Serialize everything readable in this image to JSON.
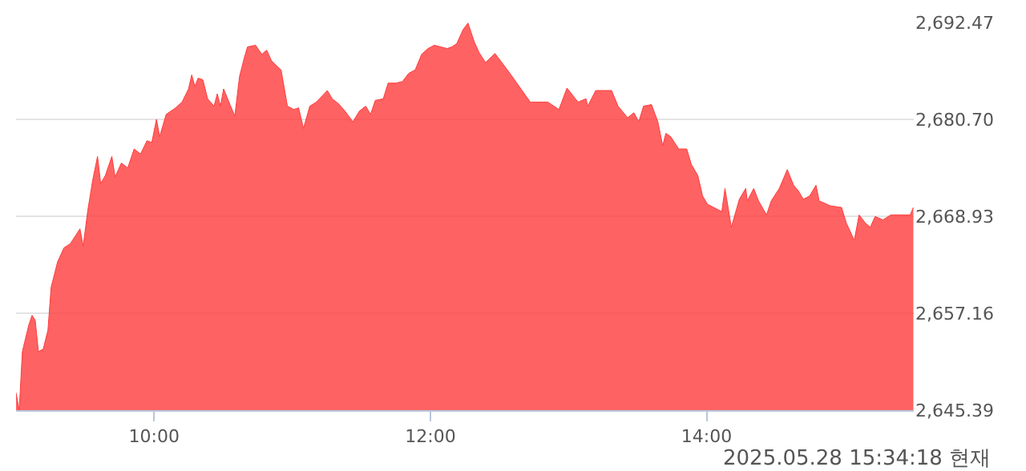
{
  "chart_data": {
    "type": "area",
    "color": "#ff3b3b",
    "marker": "none",
    "grid": "y",
    "legend": false,
    "x": [
      9.0,
      9.023,
      9.046,
      9.092,
      9.116,
      9.139,
      9.162,
      9.197,
      9.231,
      9.254,
      9.301,
      9.347,
      9.393,
      9.463,
      9.486,
      9.52,
      9.555,
      9.59,
      9.613,
      9.647,
      9.694,
      9.717,
      9.763,
      9.809,
      9.855,
      9.902,
      9.948,
      9.983,
      10.017,
      10.04,
      10.087,
      10.156,
      10.202,
      10.249,
      10.272,
      10.295,
      10.318,
      10.353,
      10.387,
      10.434,
      10.457,
      10.48,
      10.503,
      10.549,
      10.584,
      10.618,
      10.653,
      10.676,
      10.734,
      10.78,
      10.815,
      10.85,
      10.919,
      10.965,
      11.012,
      11.046,
      11.081,
      11.127,
      11.174,
      11.208,
      11.254,
      11.289,
      11.335,
      11.382,
      11.439,
      11.486,
      11.532,
      11.567,
      11.601,
      11.659,
      11.694,
      11.752,
      11.798,
      11.844,
      11.89,
      11.937,
      11.983,
      12.029,
      12.075,
      12.121,
      12.156,
      12.191,
      12.237,
      12.272,
      12.318,
      12.353,
      12.399,
      12.468,
      12.584,
      12.723,
      12.85,
      12.931,
      12.989,
      13.069,
      13.127,
      13.139,
      13.197,
      13.312,
      13.359,
      13.428,
      13.474,
      13.509,
      13.543,
      13.601,
      13.647,
      13.682,
      13.705,
      13.74,
      13.798,
      13.856,
      13.89,
      13.936,
      13.971,
      14.006,
      14.052,
      14.11,
      14.133,
      14.179,
      14.237,
      14.283,
      14.295,
      14.341,
      14.376,
      14.434,
      14.468,
      14.526,
      14.584,
      14.63,
      14.665,
      14.7,
      14.746,
      14.792,
      14.815,
      14.896,
      14.977,
      15.012,
      15.069,
      15.104,
      15.15,
      15.185,
      15.22,
      15.277,
      15.335,
      15.474,
      15.497
    ],
    "values": [
      2647.5,
      2645.4,
      2652.5,
      2655.7,
      2656.9,
      2656.3,
      2652.5,
      2652.8,
      2655.1,
      2660.3,
      2663.4,
      2665.1,
      2665.6,
      2667.4,
      2665.3,
      2669.7,
      2673.3,
      2676.2,
      2672.9,
      2673.9,
      2676.2,
      2673.7,
      2675.4,
      2674.8,
      2677.1,
      2676.5,
      2678.1,
      2677.9,
      2680.7,
      2678.6,
      2681.3,
      2682.1,
      2682.8,
      2684.4,
      2686.1,
      2684.7,
      2685.7,
      2685.5,
      2683.2,
      2682.3,
      2683.8,
      2682.3,
      2684.4,
      2682.5,
      2681.1,
      2685.9,
      2688.2,
      2689.5,
      2689.7,
      2688.6,
      2689.1,
      2687.8,
      2686.7,
      2682.3,
      2681.9,
      2682.1,
      2679.6,
      2682.3,
      2682.8,
      2683.4,
      2684.2,
      2683.2,
      2682.6,
      2681.7,
      2680.4,
      2681.7,
      2682.3,
      2681.3,
      2683.0,
      2683.2,
      2685.1,
      2685.1,
      2685.3,
      2686.3,
      2686.7,
      2688.6,
      2689.3,
      2689.7,
      2689.5,
      2689.3,
      2689.5,
      2689.9,
      2691.6,
      2692.4,
      2690.1,
      2688.8,
      2687.6,
      2688.7,
      2686.1,
      2682.8,
      2682.8,
      2681.9,
      2684.5,
      2682.8,
      2683.2,
      2682.3,
      2684.2,
      2684.2,
      2682.3,
      2680.9,
      2681.5,
      2680.4,
      2682.3,
      2682.5,
      2680.4,
      2677.5,
      2679.0,
      2678.6,
      2677.1,
      2677.1,
      2675.2,
      2673.9,
      2671.4,
      2670.4,
      2670.0,
      2669.5,
      2672.3,
      2667.6,
      2671.0,
      2672.3,
      2670.8,
      2672.3,
      2670.8,
      2669.1,
      2670.8,
      2672.3,
      2674.6,
      2672.7,
      2672.0,
      2671.0,
      2671.4,
      2672.7,
      2670.8,
      2670.2,
      2670.0,
      2668.1,
      2666.0,
      2669.1,
      2668.1,
      2667.6,
      2668.9,
      2668.5,
      2669.1,
      2669.1,
      2670.0
    ],
    "xlim": [
      9,
      15.5
    ],
    "xticks": [
      {
        "value": 10,
        "label": "10:00"
      },
      {
        "value": 12,
        "label": "12:00"
      },
      {
        "value": 14,
        "label": "14:00"
      }
    ],
    "ylim": [
      2645.39,
      2692.47
    ],
    "yticks": [
      {
        "value": 2645.39,
        "label": "2,645.39"
      },
      {
        "value": 2657.16,
        "label": "2,657.16"
      },
      {
        "value": 2668.93,
        "label": "2,668.93"
      },
      {
        "value": 2680.7,
        "label": "2,680.70"
      },
      {
        "value": 2692.47,
        "label": "2,692.47"
      }
    ],
    "annotations": [
      "2025.05.28 15:34:18 현재"
    ]
  }
}
